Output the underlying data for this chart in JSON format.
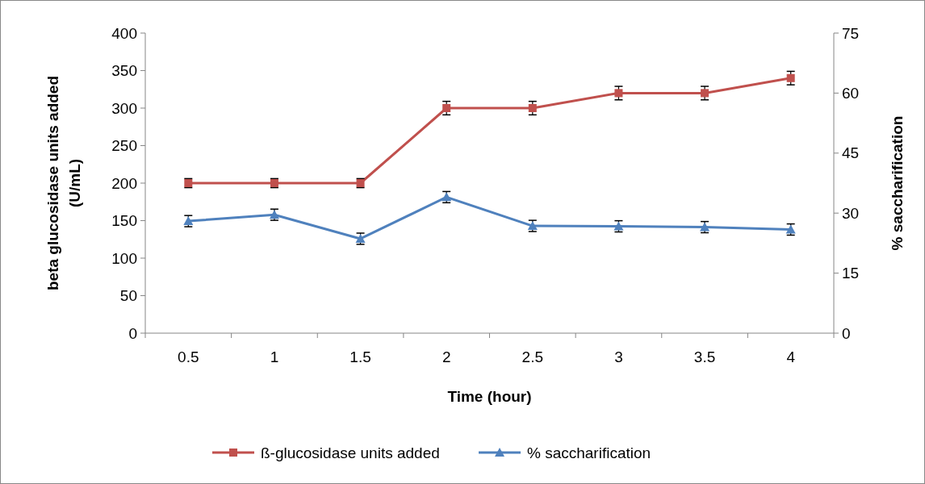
{
  "chart_data": {
    "type": "line",
    "xlabel": "Time (hour)",
    "ylabel": "beta glucosidase units added (U/mL)",
    "y2label": "% saccharification",
    "categories": [
      "0.5",
      "1",
      "1.5",
      "2",
      "2.5",
      "3",
      "3.5",
      "4"
    ],
    "series": [
      {
        "name": "ß-glucosidase units added",
        "color": "#c0504d",
        "marker": "square",
        "values": [
          200,
          200,
          200,
          300,
          300,
          320,
          320,
          340
        ],
        "errors": [
          6,
          6,
          6,
          9,
          9,
          9,
          9,
          9
        ]
      },
      {
        "name": "% saccharification",
        "color": "#4f81bd",
        "marker": "triangle",
        "axis": "y2",
        "values": [
          28.0,
          29.6,
          23.6,
          34.0,
          26.8,
          26.7,
          26.5,
          25.9
        ],
        "errors": [
          1.4,
          1.4,
          1.4,
          1.4,
          1.4,
          1.4,
          1.4,
          1.4
        ]
      }
    ],
    "ylim": [
      0,
      400
    ],
    "yticks": [
      0,
      50,
      100,
      150,
      200,
      250,
      300,
      350,
      400
    ],
    "y2lim": [
      0,
      75
    ],
    "y2ticks": [
      0,
      15,
      30,
      45,
      60,
      75
    ],
    "legend": "bottom"
  }
}
